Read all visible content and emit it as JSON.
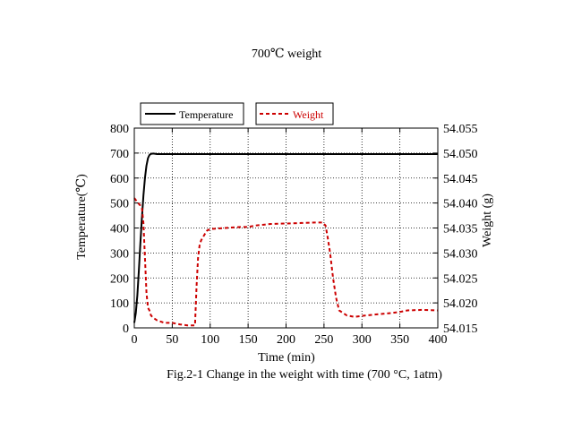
{
  "chart_data": {
    "type": "line",
    "title": "700℃ weight",
    "caption": "Fig.2-1 Change in the weight with time (700 °C, 1atm)",
    "xlabel": "Time (min)",
    "ylabel_left": "Temperature(℃)",
    "ylabel_right": "Weight (g)",
    "xlim": [
      0,
      400
    ],
    "ylim_left": [
      0,
      800
    ],
    "ylim_right": [
      54.015,
      54.055
    ],
    "x_ticks": [
      "0",
      "50",
      "100",
      "150",
      "200",
      "250",
      "300",
      "350",
      "400"
    ],
    "y_left_ticks": [
      "0",
      "100",
      "200",
      "300",
      "400",
      "500",
      "600",
      "700",
      "800"
    ],
    "y_right_ticks": [
      "54.015",
      "54.020",
      "54.025",
      "54.030",
      "54.035",
      "54.040",
      "54.045",
      "54.050",
      "54.055"
    ],
    "grid": true,
    "legend_position": "top-left, above plot",
    "series": [
      {
        "name": "Temperature",
        "axis": "left",
        "color": "#000000",
        "style": "solid",
        "x": [
          0,
          2,
          4,
          6,
          8,
          10,
          12,
          14,
          16,
          18,
          20,
          22,
          25,
          30,
          35,
          50,
          100,
          150,
          200,
          250,
          300,
          350,
          400
        ],
        "y": [
          20,
          60,
          130,
          230,
          340,
          440,
          530,
          600,
          650,
          680,
          692,
          697,
          698,
          696,
          696,
          696,
          696,
          696,
          696,
          696,
          696,
          696,
          696
        ]
      },
      {
        "name": "Weight",
        "axis": "right",
        "color": "#cc0000",
        "style": "dashed",
        "x": [
          0,
          5,
          8,
          10,
          12,
          14,
          16,
          18,
          20,
          22,
          25,
          30,
          40,
          50,
          60,
          70,
          80,
          82,
          84,
          86,
          88,
          90,
          93,
          96,
          100,
          110,
          120,
          130,
          140,
          150,
          160,
          180,
          200,
          220,
          240,
          248,
          252,
          255,
          258,
          262,
          266,
          270,
          280,
          290,
          300,
          320,
          340,
          350,
          360,
          380,
          400
        ],
        "y": [
          54.041,
          54.04,
          54.0395,
          54.039,
          54.036,
          54.029,
          54.022,
          54.019,
          54.0185,
          54.0175,
          54.017,
          54.0165,
          54.016,
          54.016,
          54.0157,
          54.0155,
          54.0155,
          54.0232,
          54.029,
          54.0315,
          54.0325,
          54.033,
          54.0338,
          54.0345,
          54.0348,
          54.0349,
          54.035,
          54.0351,
          54.0352,
          54.0352,
          54.0355,
          54.0358,
          54.0359,
          54.036,
          54.0361,
          54.0361,
          54.0355,
          54.033,
          54.03,
          54.025,
          54.021,
          54.0185,
          54.0175,
          54.0172,
          54.0174,
          54.0177,
          54.018,
          54.0182,
          54.0185,
          54.0186,
          54.0185
        ]
      }
    ]
  }
}
